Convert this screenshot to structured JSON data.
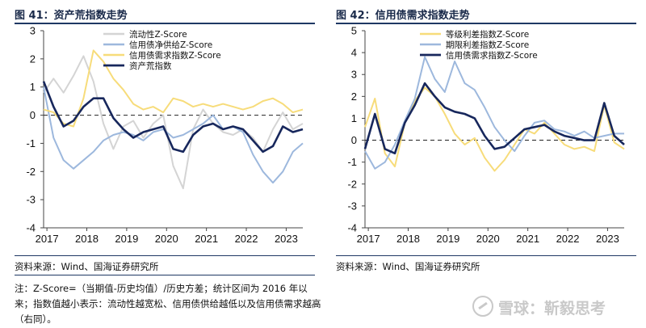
{
  "figures": [
    {
      "title": "图 41：资产荒指数走势"
    },
    {
      "title": "图 42：信用债需求指数走势"
    }
  ],
  "source": "资料来源：Wind、国海证券研究所",
  "note": "注：Z-Score=（当期值-历史均值）/历史方差；统计区间为 2016 年以来；指数值越小表示：流动性越宽松、信用债供给越低以及信用债需求越高（右同）。",
  "watermark": "雪球：靳毅思考",
  "chart_data": [
    {
      "type": "line",
      "title": "图 41：资产荒指数走势",
      "x_ticks": [
        "2017",
        "2018",
        "2019",
        "2020",
        "2021",
        "2022",
        "2023"
      ],
      "xlim": [
        "2016-12",
        "2023-06"
      ],
      "ylim": [
        -4,
        3
      ],
      "y_ticks": [
        -4,
        -3,
        -2,
        -1,
        0,
        1,
        2,
        3
      ],
      "reference_line": {
        "y": 0,
        "style": "dashed"
      },
      "legend": "top-center",
      "series": [
        {
          "name": "流动性Z-Score",
          "color": "#d4d4d4",
          "x": [
            "2016-12",
            "2017-03",
            "2017-06",
            "2017-09",
            "2017-12",
            "2018-03",
            "2018-06",
            "2018-09",
            "2018-12",
            "2019-03",
            "2019-06",
            "2019-09",
            "2019-12",
            "2020-03",
            "2020-06",
            "2020-09",
            "2020-12",
            "2021-03",
            "2021-06",
            "2021-09",
            "2021-12",
            "2022-03",
            "2022-06",
            "2022-09",
            "2022-12",
            "2023-03",
            "2023-06"
          ],
          "values": [
            0.8,
            1.3,
            0.8,
            1.4,
            2.1,
            1.2,
            -0.3,
            -1.2,
            -0.4,
            -0.2,
            -0.8,
            -0.3,
            0.0,
            -1.8,
            -2.6,
            -0.5,
            0.2,
            -0.3,
            -0.6,
            -0.7,
            -0.5,
            -0.8,
            -1.3,
            -0.5,
            0.1,
            -0.5,
            -0.3
          ]
        },
        {
          "name": "信用债净供给Z-Score",
          "color": "#9db8dd",
          "x": [
            "2016-12",
            "2017-03",
            "2017-06",
            "2017-09",
            "2017-12",
            "2018-03",
            "2018-06",
            "2018-09",
            "2018-12",
            "2019-03",
            "2019-06",
            "2019-09",
            "2019-12",
            "2020-03",
            "2020-06",
            "2020-09",
            "2020-12",
            "2021-03",
            "2021-06",
            "2021-09",
            "2021-12",
            "2022-03",
            "2022-06",
            "2022-09",
            "2022-12",
            "2023-03",
            "2023-06"
          ],
          "values": [
            1.0,
            -0.8,
            -1.6,
            -1.9,
            -1.6,
            -1.3,
            -0.9,
            -0.7,
            -0.6,
            -0.7,
            -0.9,
            -0.6,
            -0.5,
            -0.8,
            -0.7,
            -0.5,
            -0.3,
            0.0,
            -0.5,
            -0.4,
            -0.6,
            -1.4,
            -2.0,
            -2.4,
            -2.0,
            -1.3,
            -1.0
          ]
        },
        {
          "name": "信用债需求指数Z-Score",
          "color": "#f7dc7a",
          "x": [
            "2016-12",
            "2017-03",
            "2017-06",
            "2017-09",
            "2017-12",
            "2018-03",
            "2018-06",
            "2018-09",
            "2018-12",
            "2019-03",
            "2019-06",
            "2019-09",
            "2019-12",
            "2020-03",
            "2020-06",
            "2020-09",
            "2020-12",
            "2021-03",
            "2021-06",
            "2021-09",
            "2021-12",
            "2022-03",
            "2022-06",
            "2022-09",
            "2022-12",
            "2023-03",
            "2023-06"
          ],
          "values": [
            0.2,
            0.1,
            -0.3,
            -0.4,
            0.6,
            2.3,
            1.9,
            1.3,
            0.9,
            0.4,
            0.2,
            0.3,
            0.1,
            0.6,
            0.5,
            0.3,
            0.4,
            0.3,
            0.4,
            0.3,
            0.2,
            0.3,
            0.5,
            0.6,
            0.4,
            0.1,
            0.2
          ]
        },
        {
          "name": "资产荒指数",
          "color": "#17275c",
          "x": [
            "2016-12",
            "2017-03",
            "2017-06",
            "2017-09",
            "2017-12",
            "2018-03",
            "2018-06",
            "2018-09",
            "2018-12",
            "2019-03",
            "2019-06",
            "2019-09",
            "2019-12",
            "2020-03",
            "2020-06",
            "2020-09",
            "2020-12",
            "2021-03",
            "2021-06",
            "2021-09",
            "2021-12",
            "2022-03",
            "2022-06",
            "2022-09",
            "2022-12",
            "2023-03",
            "2023-06"
          ],
          "values": [
            1.2,
            0.3,
            -0.4,
            -0.2,
            0.3,
            0.6,
            0.6,
            -0.1,
            -0.5,
            -0.8,
            -0.6,
            -0.5,
            -0.4,
            -1.2,
            -1.3,
            -0.7,
            -0.4,
            -0.3,
            -0.5,
            -0.4,
            -0.5,
            -0.9,
            -1.3,
            -1.1,
            -0.4,
            -0.6,
            -0.5
          ]
        }
      ]
    },
    {
      "type": "line",
      "title": "图 42：信用债需求指数走势",
      "x_ticks": [
        "2017",
        "2018",
        "2019",
        "2020",
        "2021",
        "2022",
        "2023"
      ],
      "xlim": [
        "2016-12",
        "2023-06"
      ],
      "ylim": [
        -4,
        5
      ],
      "y_ticks": [
        -4,
        -3,
        -2,
        -1,
        0,
        1,
        2,
        3,
        4,
        5
      ],
      "reference_line": {
        "y": 0,
        "style": "dashed"
      },
      "legend": "top-center",
      "series": [
        {
          "name": "等级利差指数Z-Score",
          "color": "#f7dc7a",
          "x": [
            "2016-12",
            "2017-03",
            "2017-06",
            "2017-09",
            "2017-12",
            "2018-03",
            "2018-06",
            "2018-09",
            "2018-12",
            "2019-03",
            "2019-06",
            "2019-09",
            "2019-12",
            "2020-03",
            "2020-06",
            "2020-09",
            "2020-12",
            "2021-03",
            "2021-06",
            "2021-09",
            "2021-12",
            "2022-03",
            "2022-06",
            "2022-09",
            "2022-12",
            "2023-03",
            "2023-06"
          ],
          "values": [
            0.6,
            1.9,
            -0.6,
            -1.2,
            0.8,
            1.8,
            2.4,
            2.0,
            1.2,
            0.3,
            -0.2,
            0.1,
            -0.8,
            -1.4,
            -0.9,
            -0.2,
            0.5,
            0.3,
            0.8,
            0.3,
            -0.2,
            -0.4,
            -0.3,
            -0.5,
            1.6,
            -0.1,
            -0.4
          ]
        },
        {
          "name": "期限利差指数Z-Score",
          "color": "#9db8dd",
          "x": [
            "2016-12",
            "2017-03",
            "2017-06",
            "2017-09",
            "2017-12",
            "2018-03",
            "2018-06",
            "2018-09",
            "2018-12",
            "2019-03",
            "2019-06",
            "2019-09",
            "2019-12",
            "2020-03",
            "2020-06",
            "2020-09",
            "2020-12",
            "2021-03",
            "2021-06",
            "2021-09",
            "2021-12",
            "2022-03",
            "2022-06",
            "2022-09",
            "2022-12",
            "2023-03",
            "2023-06"
          ],
          "values": [
            -0.5,
            -1.3,
            -1.0,
            -0.2,
            0.9,
            1.9,
            3.8,
            2.8,
            2.2,
            3.6,
            2.6,
            2.3,
            1.5,
            0.6,
            0.0,
            -0.5,
            0.2,
            0.8,
            0.9,
            0.5,
            0.4,
            0.2,
            0.4,
            0.1,
            0.2,
            0.3,
            0.3
          ]
        },
        {
          "name": "信用债需求指数Z-Score",
          "color": "#17275c",
          "x": [
            "2016-12",
            "2017-03",
            "2017-06",
            "2017-09",
            "2017-12",
            "2018-03",
            "2018-06",
            "2018-09",
            "2018-12",
            "2019-03",
            "2019-06",
            "2019-09",
            "2019-12",
            "2020-03",
            "2020-06",
            "2020-09",
            "2020-12",
            "2021-03",
            "2021-06",
            "2021-09",
            "2021-12",
            "2022-03",
            "2022-06",
            "2022-09",
            "2022-12",
            "2023-03",
            "2023-06"
          ],
          "values": [
            -0.4,
            1.2,
            -0.4,
            -0.6,
            0.8,
            1.6,
            2.6,
            2.0,
            1.5,
            1.3,
            1.2,
            1.0,
            0.2,
            -0.4,
            -0.3,
            0.1,
            0.5,
            0.6,
            0.7,
            0.4,
            0.2,
            0.1,
            0.0,
            0.0,
            1.7,
            0.2,
            -0.2
          ]
        }
      ]
    }
  ]
}
